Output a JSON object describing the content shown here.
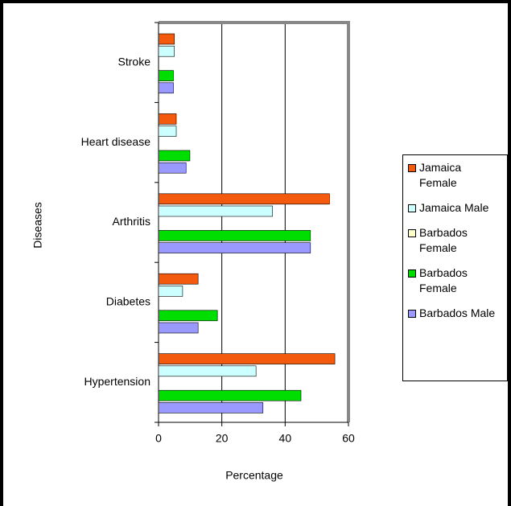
{
  "chart_data": {
    "type": "bar",
    "orientation": "horizontal",
    "x_label": "Percentage",
    "y_label": "Diseases",
    "categories": [
      "Stroke",
      "Heart disease",
      "Arthritis",
      "Diabetes",
      "Hypertension"
    ],
    "series": [
      {
        "name": "Jamaica Female",
        "color": "#f35a0e",
        "values": [
          5,
          5.6,
          54,
          12.5,
          55.7
        ]
      },
      {
        "name": "Jamaica Male",
        "color": "#ccffff",
        "values": [
          5,
          5.6,
          36,
          7.6,
          30.8
        ]
      },
      {
        "name": "Barbados Female",
        "color": "#ffffcc",
        "values": [
          0,
          0,
          0,
          0,
          0
        ]
      },
      {
        "name": "Barbados Female",
        "color": "#00dd00",
        "values": [
          4.7,
          9.9,
          48,
          18.6,
          45
        ]
      },
      {
        "name": "Barbados Male",
        "color": "#9999ff",
        "values": [
          4.7,
          8.7,
          48,
          12.5,
          33
        ]
      }
    ],
    "xlim": [
      0,
      60
    ],
    "xticks": [
      0,
      20,
      40,
      60
    ],
    "grid": true,
    "legend": "right"
  }
}
